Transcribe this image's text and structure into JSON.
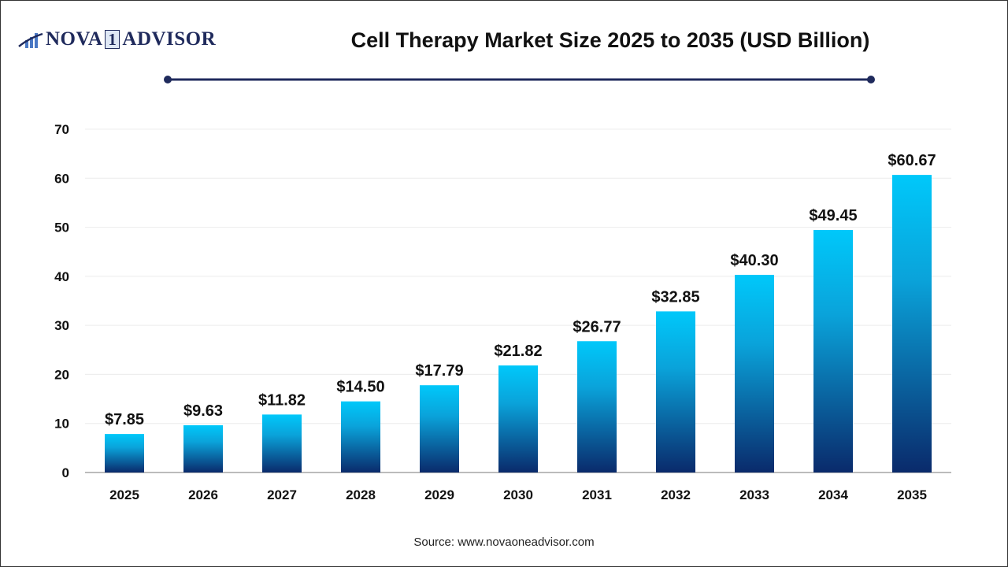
{
  "logo": {
    "text_left": "NOVA",
    "text_one": "1",
    "text_right": "ADVISOR"
  },
  "title": "Cell Therapy Market Size 2025 to 2035  (USD Billion)",
  "source": "Source: www.novaoneadvisor.com",
  "colors": {
    "bar_top": "#00C8FA",
    "bar_bottom": "#0A2A6B",
    "title_rule": "#1f2a5c"
  },
  "chart_data": {
    "type": "bar",
    "title": "Cell Therapy Market Size 2025 to 2035  (USD Billion)",
    "categories": [
      "2025",
      "2026",
      "2027",
      "2028",
      "2029",
      "2030",
      "2031",
      "2032",
      "2033",
      "2034",
      "2035"
    ],
    "values": [
      7.85,
      9.63,
      11.82,
      14.5,
      17.79,
      21.82,
      26.77,
      32.85,
      40.3,
      49.45,
      60.67
    ],
    "data_labels": [
      "$7.85",
      "$9.63",
      "$11.82",
      "$14.50",
      "$17.79",
      "$21.82",
      "$26.77",
      "$32.85",
      "$40.30",
      "$49.45",
      "$60.67"
    ],
    "yticks": [
      0,
      10,
      20,
      30,
      40,
      50,
      60,
      70
    ],
    "ylim": [
      0,
      70
    ],
    "xlabel": "",
    "ylabel": "",
    "grid": true
  }
}
